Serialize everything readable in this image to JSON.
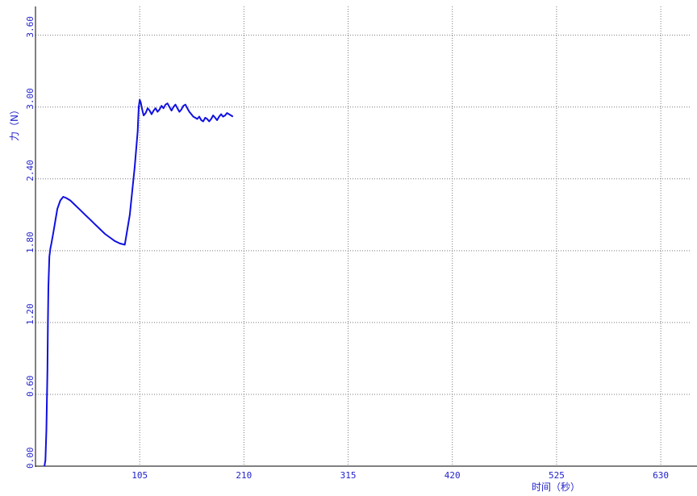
{
  "chart_data": {
    "type": "line",
    "title": "",
    "xlabel": "时间（秒）",
    "ylabel": "力（N）",
    "xlim": [
      0,
      660
    ],
    "ylim": [
      0,
      3.84
    ],
    "x_ticks": [
      105,
      210,
      315,
      420,
      525,
      630
    ],
    "x_tick_labels": [
      "105",
      "210",
      "315",
      "420",
      "525",
      "630"
    ],
    "y_ticks": [
      0.0,
      0.6,
      1.2,
      1.8,
      2.4,
      3.0,
      3.6
    ],
    "y_tick_labels": [
      "0.00",
      "0.60",
      "1.20",
      "1.80",
      "2.40",
      "3.00",
      "3.60"
    ],
    "grid": true,
    "color": "#1010e0",
    "series": [
      {
        "x": [
          9,
          10,
          11,
          12,
          12.5,
          13,
          14,
          15,
          16,
          18,
          20,
          22,
          25,
          28,
          31,
          35,
          40,
          45,
          50,
          55,
          60,
          65,
          70,
          75,
          80,
          85,
          90,
          95,
          100,
          103,
          103.5,
          104,
          105,
          106,
          107,
          108,
          109,
          111,
          113,
          115,
          117,
          119,
          121,
          123,
          125,
          127,
          129,
          131,
          133,
          135,
          137,
          139,
          141,
          143,
          145,
          147,
          149,
          151,
          153,
          155,
          157,
          159,
          161,
          163,
          165,
          167,
          169,
          171,
          173,
          175,
          177,
          179,
          181,
          183,
          185,
          187,
          189,
          191,
          193,
          195,
          197,
          199
        ],
        "y": [
          0.0,
          0.05,
          0.3,
          0.8,
          1.2,
          1.5,
          1.75,
          1.82,
          1.86,
          1.95,
          2.05,
          2.15,
          2.22,
          2.25,
          2.24,
          2.22,
          2.18,
          2.14,
          2.1,
          2.06,
          2.02,
          1.98,
          1.94,
          1.91,
          1.88,
          1.86,
          1.85,
          2.1,
          2.5,
          2.8,
          2.9,
          3.0,
          3.06,
          3.04,
          3.0,
          2.96,
          2.93,
          2.95,
          2.99,
          2.97,
          2.94,
          2.97,
          2.99,
          2.96,
          2.98,
          3.01,
          2.99,
          3.02,
          3.03,
          3.0,
          2.97,
          3.0,
          3.02,
          2.99,
          2.96,
          2.98,
          3.01,
          3.02,
          2.99,
          2.96,
          2.94,
          2.92,
          2.91,
          2.9,
          2.92,
          2.89,
          2.88,
          2.91,
          2.9,
          2.88,
          2.9,
          2.93,
          2.91,
          2.89,
          2.92,
          2.94,
          2.92,
          2.93,
          2.95,
          2.94,
          2.93,
          2.92
        ]
      }
    ]
  }
}
